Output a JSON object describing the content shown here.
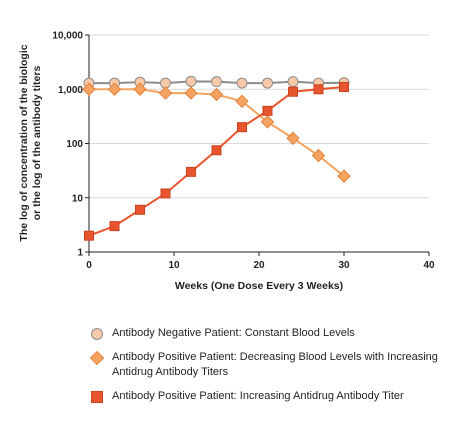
{
  "chart_data": {
    "type": "line",
    "yscale": "log",
    "xlabel": "Weeks (One Dose Every 3 Weeks)",
    "ylabel_lines": [
      "The log of concentration of the biologic",
      "or the log of the antibody titers"
    ],
    "xlim": [
      0,
      40
    ],
    "ylim": [
      1,
      10000
    ],
    "x_ticks": [
      "0",
      "10",
      "20",
      "30",
      "40"
    ],
    "y_ticks": [
      "1",
      "10",
      "100",
      "1,000",
      "10,000"
    ],
    "grid": "horizontal",
    "legend_position": "bottom",
    "series": [
      {
        "name": "Antibody Negative Patient: Constant Blood Levels",
        "marker": "circle",
        "line_color": "#8c8c8c",
        "fill_color": "#f8c9a8",
        "stroke_color": "#8c8c8c",
        "x": [
          0,
          3,
          6,
          9,
          12,
          15,
          18,
          21,
          24,
          27,
          30
        ],
        "y": [
          1300,
          1300,
          1350,
          1300,
          1400,
          1380,
          1300,
          1300,
          1380,
          1300,
          1320
        ]
      },
      {
        "name": "Antibody Positive Patient: Decreasing Blood Levels with Increasing Antidrug Antibody Titers",
        "marker": "diamond",
        "line_color": "#f4a460",
        "fill_color": "#f4a460",
        "stroke_color": "#e8823a",
        "x": [
          0,
          3,
          6,
          9,
          12,
          15,
          18,
          21,
          24,
          27,
          30
        ],
        "y": [
          1000,
          1000,
          1000,
          850,
          850,
          800,
          600,
          250,
          125,
          60,
          25
        ]
      },
      {
        "name": "Antibody Positive Patient: Increasing Antidrug Antibody Titer",
        "marker": "square",
        "line_color": "#e8542e",
        "fill_color": "#e8542e",
        "stroke_color": "#c9431f",
        "x": [
          0,
          3,
          6,
          9,
          12,
          15,
          18,
          21,
          24,
          27,
          30
        ],
        "y": [
          2,
          3,
          6,
          12,
          30,
          75,
          200,
          400,
          900,
          1000,
          1100
        ]
      }
    ]
  }
}
